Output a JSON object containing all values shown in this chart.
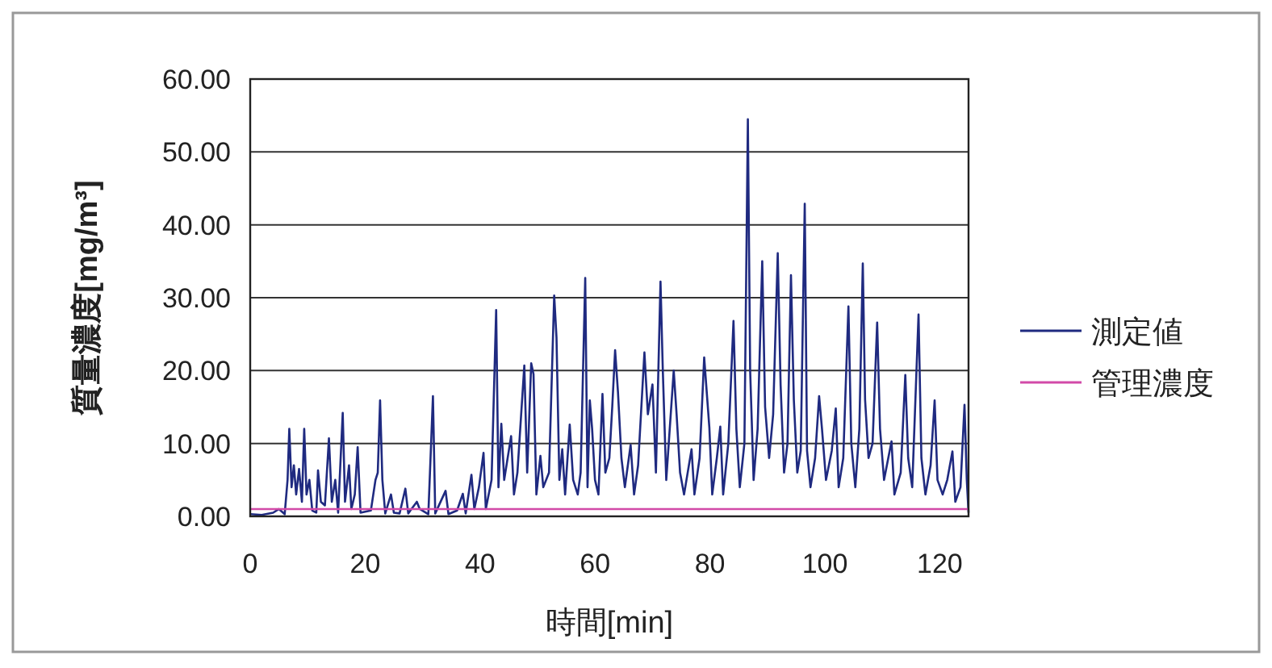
{
  "chart_data": {
    "type": "line",
    "xlabel": "時間[min]",
    "ylabel": "質量濃度[mg/m³]",
    "xlim": [
      0,
      125
    ],
    "ylim": [
      0,
      60
    ],
    "xticks": [
      0,
      20,
      40,
      60,
      80,
      100,
      120
    ],
    "yticks": [
      {
        "value": 0,
        "label": "0.00"
      },
      {
        "value": 10,
        "label": "10.00"
      },
      {
        "value": 20,
        "label": "20.00"
      },
      {
        "value": 30,
        "label": "30.00"
      },
      {
        "value": 40,
        "label": "40.00"
      },
      {
        "value": 50,
        "label": "50.00"
      },
      {
        "value": 60,
        "label": "60.00"
      }
    ],
    "grid": "y",
    "legend": "right",
    "marker": "none",
    "line_style": "solid",
    "series": [
      {
        "name": "測定値",
        "color": "#1f2a80",
        "x": [
          0,
          2,
          4,
          5,
          6,
          6.5,
          6.8,
          7.2,
          7.6,
          8,
          8.5,
          9,
          9.4,
          9.8,
          10.3,
          10.8,
          11.5,
          11.8,
          12.3,
          13,
          13.7,
          14.2,
          14.8,
          15.3,
          16.1,
          16.5,
          17.2,
          17.6,
          18.2,
          18.7,
          19.2,
          21,
          21.8,
          22.2,
          22.6,
          23,
          23.5,
          24.5,
          25,
          26,
          27,
          27.5,
          29,
          29.5,
          31,
          31.8,
          32.2,
          34,
          34.5,
          36,
          37,
          37.5,
          38.5,
          39,
          39.8,
          40.6,
          41,
          42,
          42.8,
          43.2,
          43.7,
          44.2,
          45.4,
          45.9,
          46.5,
          47.7,
          48.2,
          48.9,
          49.3,
          49.8,
          50.5,
          51,
          52,
          52.9,
          53.3,
          53.8,
          54.3,
          54.8,
          55.6,
          56.2,
          57,
          57.5,
          58.3,
          58.7,
          59.1,
          59.5,
          60,
          60.6,
          61.3,
          61.8,
          62.5,
          63,
          63.5,
          64,
          64.6,
          65.2,
          66.2,
          66.8,
          67.5,
          68.6,
          69.2,
          70,
          70.6,
          71.4,
          71.8,
          72.4,
          73.7,
          74.2,
          74.8,
          75.5,
          76.8,
          77.3,
          78.2,
          79,
          79.9,
          80.4,
          81.2,
          81.8,
          82.3,
          83.2,
          84.1,
          84.6,
          85.2,
          86,
          86.6,
          87,
          87.6,
          88.3,
          89.1,
          89.6,
          90.3,
          91,
          91.8,
          92.3,
          92.9,
          93.5,
          94.1,
          94.6,
          95.2,
          95.8,
          96.5,
          96.9,
          97.5,
          98.3,
          99,
          99.5,
          100.2,
          101.2,
          101.9,
          102.4,
          103.2,
          104.1,
          104.6,
          105.3,
          106,
          106.6,
          107,
          107.6,
          108.3,
          109.1,
          109.6,
          110.3,
          111.6,
          112.1,
          113.2,
          114,
          114.5,
          115.2,
          116.3,
          116.8,
          117.5,
          118.4,
          119.1,
          119.6,
          120.5,
          121.3,
          122.2,
          122.7,
          123.6,
          124.3,
          124.7,
          125
        ],
        "values": [
          0.3,
          0.2,
          0.5,
          1,
          0.3,
          5,
          12,
          4,
          7,
          3,
          6.5,
          2,
          12,
          3,
          5,
          0.8,
          0.5,
          6.3,
          2,
          1.5,
          10.7,
          2,
          5,
          0.5,
          14.2,
          2,
          7,
          1,
          3,
          9.5,
          0.5,
          0.8,
          5,
          6,
          15.9,
          5,
          0.4,
          3,
          0.5,
          0.4,
          3.8,
          0.4,
          2,
          1,
          0.3,
          16.5,
          0.4,
          3.5,
          0.3,
          0.8,
          3.1,
          0.4,
          5.7,
          1,
          4,
          8.7,
          1,
          5,
          28.3,
          4,
          12.7,
          5,
          11,
          3,
          6,
          20.7,
          6,
          21,
          19.5,
          3,
          8.3,
          4,
          6,
          30.3,
          24.5,
          5,
          9.2,
          3,
          12.6,
          5,
          3,
          6,
          32.7,
          4,
          15.9,
          12,
          5,
          3,
          16.8,
          6,
          8,
          15,
          22.8,
          17,
          8,
          4,
          9.8,
          3,
          7,
          22.5,
          14,
          18.1,
          6,
          32.2,
          20,
          5,
          20,
          14,
          6,
          3,
          9.2,
          3,
          8,
          21.8,
          12.2,
          3,
          8,
          12.3,
          3,
          10,
          26.8,
          12,
          4,
          10,
          54.5,
          20,
          5,
          12,
          35,
          15,
          8,
          14,
          36.1,
          18,
          6,
          10,
          33.1,
          16,
          6,
          9,
          42.9,
          9,
          4,
          8,
          16.5,
          12,
          5,
          9,
          14.8,
          4,
          8,
          28.8,
          10,
          4,
          12,
          34.7,
          16,
          8,
          10,
          26.6,
          12,
          5,
          10.3,
          3,
          6,
          19.4,
          8,
          4,
          27.7,
          8,
          3,
          7,
          15.9,
          5,
          3,
          5,
          8.9,
          2,
          4,
          15.3,
          5,
          0.5
        ]
      },
      {
        "name": "管理濃度",
        "color": "#d24aa8",
        "x": [
          0,
          125
        ],
        "values": [
          1,
          1
        ]
      }
    ]
  }
}
